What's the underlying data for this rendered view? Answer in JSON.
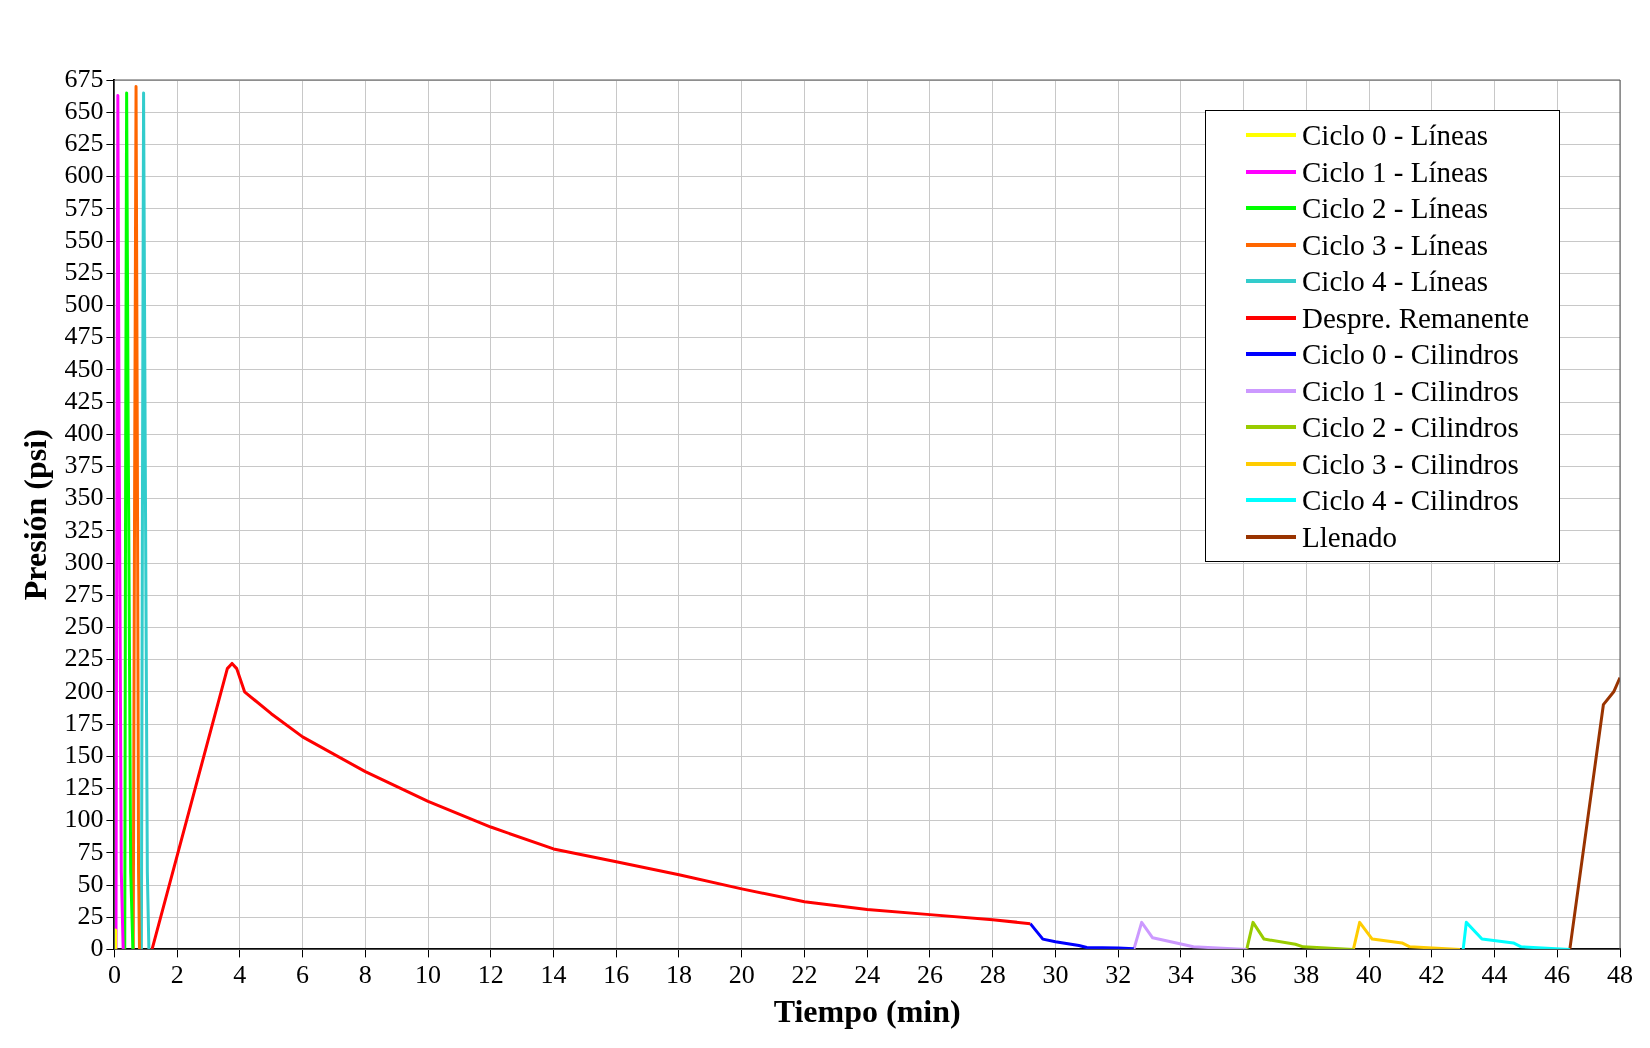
{
  "chart_data": {
    "type": "line",
    "xlabel": "Tiempo (min)",
    "ylabel": "Presión (psi)",
    "xlim": [
      0,
      48
    ],
    "ylim": [
      0,
      675
    ],
    "xticks": [
      0,
      2,
      4,
      6,
      8,
      10,
      12,
      14,
      16,
      18,
      20,
      22,
      24,
      26,
      28,
      30,
      32,
      34,
      36,
      38,
      40,
      42,
      44,
      46,
      48
    ],
    "yticks": [
      0,
      25,
      50,
      75,
      100,
      125,
      150,
      175,
      200,
      225,
      250,
      275,
      300,
      325,
      350,
      375,
      400,
      425,
      450,
      475,
      500,
      525,
      550,
      575,
      600,
      625,
      650,
      675
    ],
    "grid": true,
    "legend": "top right",
    "marker": "none",
    "line_style": "solid",
    "series": [
      {
        "name": "Ciclo 0 - Líneas",
        "color": "#ffff00",
        "x": [
          0.02,
          0.03,
          0.05
        ],
        "values": [
          0,
          15,
          0
        ]
      },
      {
        "name": "Ciclo 1 - Líneas",
        "color": "#ff00ff",
        "x": [
          0.05,
          0.08,
          0.11,
          0.15,
          0.22,
          0.28
        ],
        "values": [
          0,
          400,
          663,
          400,
          60,
          0
        ]
      },
      {
        "name": "Ciclo 2 - Líneas",
        "color": "#00ff00",
        "x": [
          0.33,
          0.36,
          0.39,
          0.44,
          0.52,
          0.59
        ],
        "values": [
          0,
          400,
          665,
          400,
          60,
          0
        ]
      },
      {
        "name": "Ciclo 3 - Líneas",
        "color": "#ff6600",
        "x": [
          0.6,
          0.65,
          0.69,
          0.73,
          0.77,
          0.8
        ],
        "values": [
          0,
          400,
          670,
          400,
          60,
          0
        ]
      },
      {
        "name": "Ciclo 4 - Líneas",
        "color": "#33cccc",
        "x": [
          0.86,
          0.9,
          0.93,
          0.98,
          1.05,
          1.1
        ],
        "values": [
          0,
          400,
          665,
          400,
          60,
          0
        ]
      },
      {
        "name": "Despre. Remanente",
        "color": "#ff0000",
        "x": [
          1.2,
          3.6,
          3.75,
          3.9,
          4.15,
          5,
          6,
          8,
          10,
          12,
          14,
          16,
          18,
          20,
          22,
          24,
          26,
          28,
          29.2
        ],
        "values": [
          0,
          218,
          222,
          218,
          200,
          183,
          165,
          138,
          115,
          95,
          78,
          68,
          58,
          47,
          37,
          31,
          27,
          23,
          20
        ]
      },
      {
        "name": "Ciclo 0 - Cilindros",
        "color": "#0000ff",
        "x": [
          29.2,
          29.6,
          30,
          30.75,
          31,
          32,
          32.5
        ],
        "values": [
          20,
          8,
          6,
          3,
          1.5,
          1,
          0.5
        ]
      },
      {
        "name": "Ciclo 1 - Cilindros",
        "color": "#cc99ff",
        "x": [
          32.5,
          32.75,
          33.1,
          34.4,
          36.1
        ],
        "values": [
          0,
          21,
          9,
          2,
          0
        ]
      },
      {
        "name": "Ciclo 2 - Cilindros",
        "color": "#99cc00",
        "x": [
          36.1,
          36.3,
          36.65,
          37.65,
          37.9,
          39.5
        ],
        "values": [
          0,
          21,
          8,
          4,
          2,
          0
        ]
      },
      {
        "name": "Ciclo 3 - Cilindros",
        "color": "#ffcc00",
        "x": [
          39.5,
          39.7,
          40.1,
          41.05,
          41.3,
          42.9
        ],
        "values": [
          0,
          21,
          8,
          5,
          2,
          0
        ]
      },
      {
        "name": "Ciclo 4 - Cilindros",
        "color": "#00ffff",
        "x": [
          43,
          43.1,
          43.6,
          44.6,
          44.85,
          46.4
        ],
        "values": [
          0,
          21,
          8,
          5,
          2,
          0
        ]
      },
      {
        "name": "Llenado",
        "color": "#993300",
        "x": [
          46.4,
          47.47,
          47.8,
          48
        ],
        "values": [
          0,
          190,
          200,
          211
        ]
      }
    ]
  }
}
